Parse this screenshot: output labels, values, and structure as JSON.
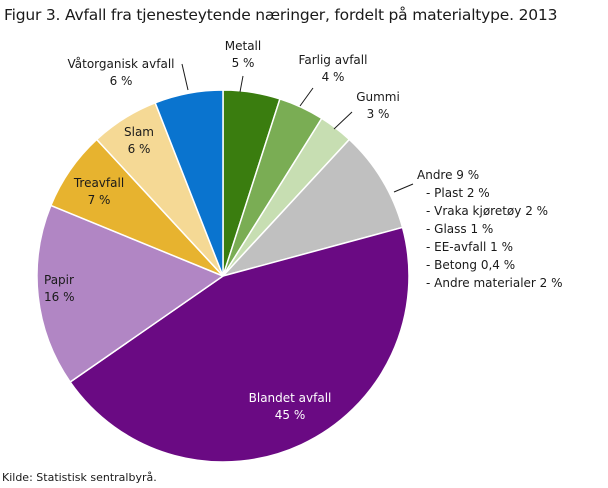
{
  "title": "Figur 3. Avfall fra tjenesteytende næringer, fordelt på materialtype. 2013",
  "source": "Kilde: Statistisk sentralbyrå.",
  "chart_data": {
    "type": "pie",
    "title": "Figur 3. Avfall fra tjenesteytende næringer, fordelt på materialtype. 2013",
    "slices": [
      {
        "name": "Metall",
        "value": 5,
        "label": "5 %",
        "color": "#3a7d0f"
      },
      {
        "name": "Farlig avfall",
        "value": 4,
        "label": "4 %",
        "color": "#7aad54"
      },
      {
        "name": "Gummi",
        "value": 3,
        "label": "3 %",
        "color": "#c7deb2"
      },
      {
        "name": "Andre",
        "value": 9,
        "label": "9 %",
        "color": "#c0c0c0",
        "breakdown": [
          {
            "name": "Plast",
            "label": "2 %"
          },
          {
            "name": "Vraka kjøretøy",
            "label": "2 %"
          },
          {
            "name": "Glass",
            "label": "1 %"
          },
          {
            "name": "EE-avfall",
            "label": "1 %"
          },
          {
            "name": "Betong",
            "label": "0,4 %"
          },
          {
            "name": "Andre materialer",
            "label": "2 %"
          }
        ]
      },
      {
        "name": "Blandet avfall",
        "value": 45,
        "label": "45 %",
        "color": "#6a0a83"
      },
      {
        "name": "Papir",
        "value": 16,
        "label": "16 %",
        "color": "#b186c4"
      },
      {
        "name": "Treavfall",
        "value": 7,
        "label": "7 %",
        "color": "#e7b32f"
      },
      {
        "name": "Slam",
        "value": 6,
        "label": "6 %",
        "color": "#f5d995"
      },
      {
        "name": "Våtorganisk avfall",
        "value": 6,
        "label": "6 %",
        "color": "#0a74cf"
      }
    ]
  }
}
